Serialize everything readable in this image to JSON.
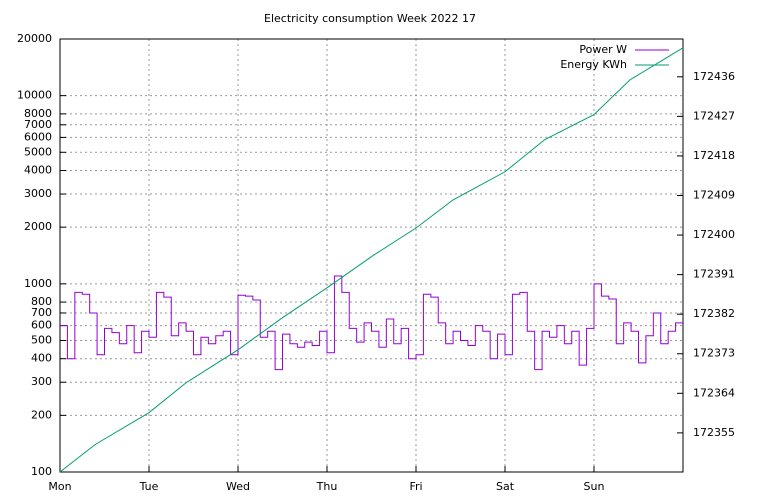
{
  "chart_data": {
    "type": "line",
    "title": "Electricity consumption Week 2022 17",
    "xlim": [
      0,
      168
    ],
    "xticks": [
      {
        "value": 0,
        "label": "Mon"
      },
      {
        "value": 24,
        "label": "Tue"
      },
      {
        "value": 48,
        "label": "Wed"
      },
      {
        "value": 72,
        "label": "Thu"
      },
      {
        "value": 96,
        "label": "Fri"
      },
      {
        "value": 120,
        "label": "Sat"
      },
      {
        "value": 144,
        "label": "Sun"
      }
    ],
    "ylim": [
      100,
      20000
    ],
    "log_y": true,
    "yticks": [
      100,
      200,
      300,
      400,
      500,
      600,
      700,
      800,
      1000,
      2000,
      3000,
      4000,
      5000,
      6000,
      7000,
      8000,
      10000,
      20000
    ],
    "y2lim": [
      172346.1,
      172444.6
    ],
    "y2ticks": [
      172355,
      172364,
      172373,
      172382,
      172391,
      172400,
      172409,
      172418,
      172427,
      172436
    ],
    "grid": true,
    "legend": "top-right",
    "series": [
      {
        "name": "Power W",
        "color": "#9400d3",
        "step": true,
        "x": [
          0,
          2,
          4,
          6,
          8,
          10,
          12,
          14,
          16,
          18,
          20,
          22,
          24,
          26,
          28,
          30,
          32,
          34,
          36,
          38,
          40,
          42,
          44,
          46,
          48,
          50,
          52,
          54,
          56,
          58,
          60,
          62,
          64,
          66,
          68,
          70,
          72,
          74,
          76,
          78,
          80,
          82,
          84,
          86,
          88,
          90,
          92,
          94,
          96,
          98,
          100,
          102,
          104,
          106,
          108,
          110,
          112,
          114,
          116,
          118,
          120,
          122,
          124,
          126,
          128,
          130,
          132,
          134,
          136,
          138,
          140,
          142,
          144,
          146,
          148,
          150,
          152,
          154,
          156,
          158,
          160,
          162,
          164,
          166
        ],
        "values": [
          600,
          400,
          900,
          880,
          700,
          420,
          580,
          550,
          480,
          600,
          430,
          560,
          520,
          900,
          850,
          530,
          620,
          560,
          420,
          520,
          480,
          530,
          560,
          420,
          870,
          860,
          820,
          520,
          560,
          350,
          540,
          480,
          460,
          490,
          470,
          560,
          430,
          1100,
          900,
          580,
          490,
          620,
          560,
          460,
          650,
          480,
          580,
          400,
          420,
          880,
          850,
          620,
          480,
          560,
          500,
          470,
          600,
          560,
          400,
          540,
          420,
          880,
          900,
          560,
          350,
          560,
          520,
          600,
          480,
          560,
          370,
          580,
          1000,
          860,
          830,
          480,
          620,
          560,
          380,
          530,
          700,
          480,
          560,
          620
        ]
      },
      {
        "name": "Energy KWh",
        "color": "#009e73",
        "axis": "y2",
        "x": [
          0,
          9.4,
          24,
          34,
          48,
          60,
          72,
          84.7,
          96,
          106,
          120,
          130.7,
          144,
          153.7,
          168
        ],
        "values": [
          172346.1,
          172352.3,
          172359.6,
          172366.4,
          172373.9,
          172381.2,
          172388.0,
          172395.5,
          172401.6,
          172408.0,
          172414.4,
          172421.7,
          172427.4,
          172435.3,
          172442.6
        ]
      }
    ]
  }
}
